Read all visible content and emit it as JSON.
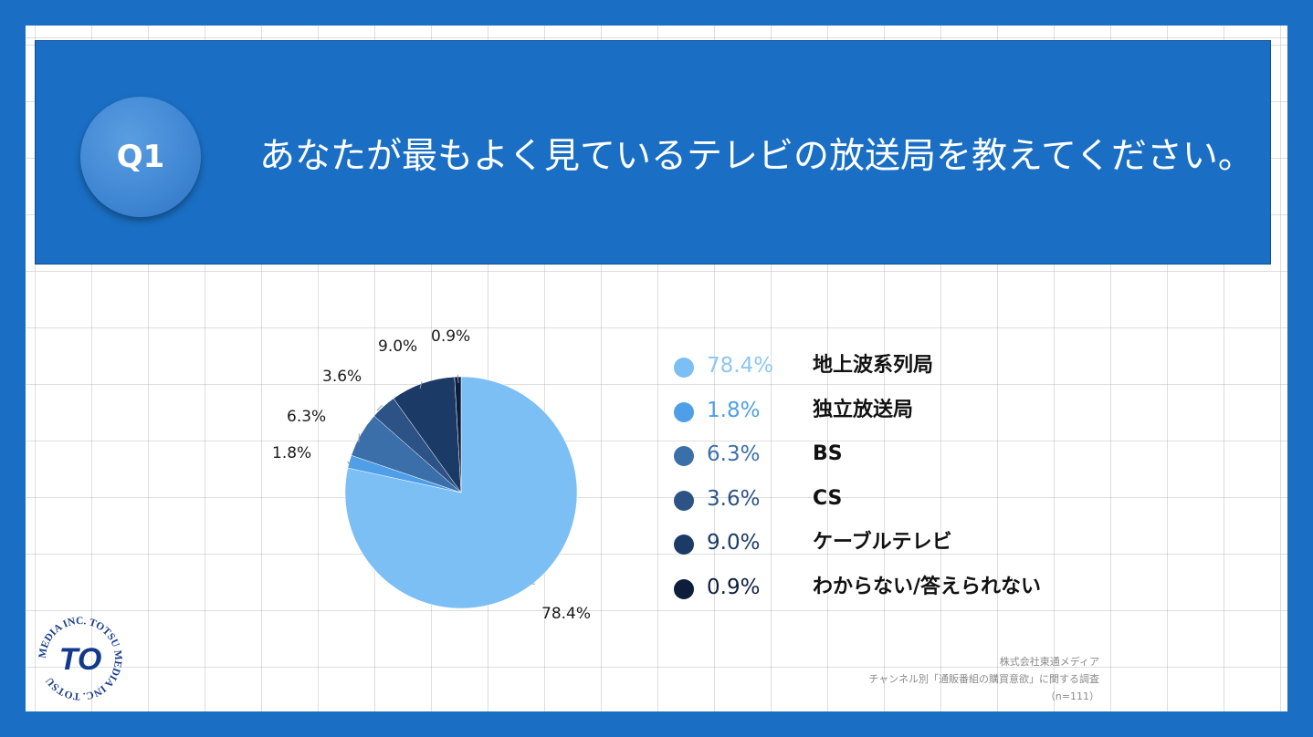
{
  "question": {
    "badge": "Q1",
    "title": "あなたが最もよく見ているテレビの放送局を教えてください。"
  },
  "chart_data": {
    "type": "pie",
    "title": "",
    "slices": [
      {
        "label": "地上波系列局",
        "value": 78.4,
        "display": "78.4%",
        "color": "#7bbff5",
        "pct_color": "#8cc6f3"
      },
      {
        "label": "独立放送局",
        "value": 1.8,
        "display": "1.8%",
        "color": "#4f9ee8",
        "pct_color": "#4f9ee8"
      },
      {
        "label": "BS",
        "value": 6.3,
        "display": "6.3%",
        "color": "#3a6faa",
        "pct_color": "#3a6faa"
      },
      {
        "label": "CS",
        "value": 3.6,
        "display": "3.6%",
        "color": "#2d5285",
        "pct_color": "#2d5285"
      },
      {
        "label": "ケーブルテレビ",
        "value": 9.0,
        "display": "9.0%",
        "color": "#1b3a66",
        "pct_color": "#1b3a66"
      },
      {
        "label": "わからない/答えられない",
        "value": 0.9,
        "display": "0.9%",
        "color": "#0d1e3d",
        "pct_color": "#0d1e3d"
      }
    ],
    "legend_position": "right"
  },
  "logo": {
    "ring_text": "MEDIA INC. TOTSU MEDIA INC. TOTSU ",
    "mark_text": "TO",
    "colors": {
      "ring": "#1a3f8a",
      "mark": "#123a8c"
    }
  },
  "source": {
    "line1": "株式会社東通メディア",
    "line2": "チャンネル別「通販番組の購買意欲」に関する調査",
    "line3": "（n=111）"
  }
}
